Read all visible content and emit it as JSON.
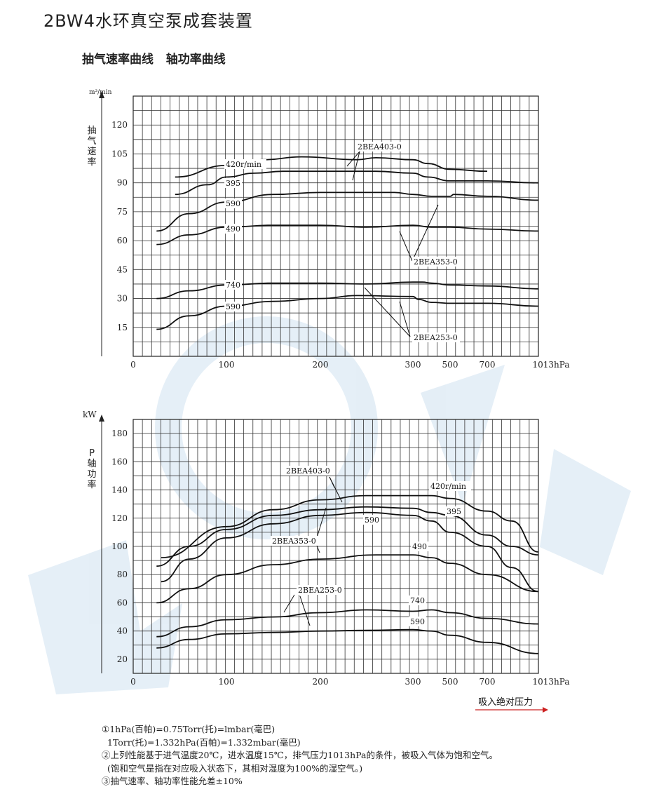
{
  "page": {
    "title": "2BW4水环真空泵成套装置",
    "subtitle": "抽气速率曲线   轴功率曲线",
    "footer_axis_label": "吸入绝对压力",
    "notes": [
      "①1hPa(百帕)=0.75Torr(托)=lmbar(毫巴)",
      "  1Torr(托)=1.332hPa(百帕)=1.332mbar(毫巴)",
      "②上列性能基于进气温度20℃，进水温度15℃，排气压力1013hPa的条件，被吸入气体为饱和空气。",
      "  (饱和空气是指在对应吸入状态下，其相对湿度为100%的湿空气。)",
      "③抽气速率、轴功率性能允差±10%"
    ]
  },
  "chart_data": [
    {
      "type": "line",
      "title": "抽气速率曲线",
      "ylabel": "抽气速率",
      "yunit": "m³/min",
      "ylim": [
        0,
        135
      ],
      "yticks": [
        15,
        30,
        45,
        60,
        75,
        90,
        105,
        120
      ],
      "xticks": [
        {
          "label": "0",
          "value": 0
        },
        {
          "label": "100",
          "value": 100
        },
        {
          "label": "200",
          "value": 200
        },
        {
          "label": "300",
          "value": 300
        },
        {
          "label": "500",
          "value": 500
        },
        {
          "label": "700",
          "value": 700
        },
        {
          "label": "1013hPa",
          "value": 1013
        }
      ],
      "grid": true,
      "series": [
        {
          "name": "420r/min",
          "x": [
            45,
            100,
            140,
            180,
            240,
            260,
            300,
            380,
            500,
            700
          ],
          "values": [
            93,
            99,
            102,
            103.5,
            102,
            103,
            102,
            100,
            97,
            96
          ]
        },
        {
          "name": "395",
          "x": [
            45,
            80,
            100,
            130,
            160,
            200,
            260,
            300,
            380,
            500,
            700,
            1013
          ],
          "values": [
            84,
            89,
            93,
            95,
            96,
            96,
            96,
            95,
            93,
            91,
            91,
            90
          ]
        },
        {
          "name": "590",
          "x": [
            25,
            60,
            100,
            150,
            200,
            280,
            300,
            400,
            500,
            520,
            700,
            1013
          ],
          "values": [
            65,
            74,
            80,
            84,
            85,
            85,
            84,
            83,
            83,
            84,
            83,
            81
          ]
        },
        {
          "name": "490",
          "x": [
            25,
            60,
            100,
            150,
            200,
            250,
            300,
            400,
            500,
            700,
            1013
          ],
          "values": [
            58,
            63,
            67,
            68,
            68,
            67,
            68,
            67,
            67,
            66,
            65
          ]
        },
        {
          "name": "740",
          "x": [
            25,
            60,
            100,
            150,
            200,
            250,
            300,
            350,
            400,
            500,
            700,
            1013
          ],
          "values": [
            30,
            34,
            37,
            38,
            38,
            37.5,
            38.5,
            38.5,
            38,
            37,
            36.5,
            35
          ]
        },
        {
          "name": "590",
          "x": [
            25,
            60,
            100,
            150,
            200,
            240,
            300,
            330,
            400,
            500,
            700,
            1013
          ],
          "values": [
            14,
            21,
            26,
            28.5,
            30,
            31.5,
            31,
            29.5,
            28,
            27.5,
            27.5,
            26
          ]
        }
      ],
      "annotations": [
        "2BEA403-0",
        "2BEA353-0",
        "2BEA253-0"
      ]
    },
    {
      "type": "line",
      "title": "轴功率曲线",
      "ylabel": "P 轴功率",
      "yunit": "kW",
      "ylim": [
        10,
        190
      ],
      "yticks": [
        20,
        40,
        60,
        80,
        100,
        120,
        140,
        160,
        180
      ],
      "xticks": [
        {
          "label": "0",
          "value": 0
        },
        {
          "label": "100",
          "value": 100
        },
        {
          "label": "200",
          "value": 200
        },
        {
          "label": "300",
          "value": 300
        },
        {
          "label": "500",
          "value": 500
        },
        {
          "label": "700",
          "value": 700
        },
        {
          "label": "1013hPa",
          "value": 1013
        }
      ],
      "grid": true,
      "series": [
        {
          "name": "420r/min",
          "x": [
            30,
            100,
            150,
            200,
            250,
            300,
            400,
            500,
            700,
            850,
            1013
          ],
          "values": [
            92,
            114,
            126,
            133,
            136,
            136,
            136,
            134,
            125,
            118,
            96
          ]
        },
        {
          "name": "395",
          "x": [
            25,
            60,
            100,
            150,
            200,
            250,
            300,
            400,
            500,
            700,
            850,
            1013
          ],
          "values": [
            86,
            100,
            112,
            122,
            126,
            128,
            127,
            124,
            122,
            108,
            100,
            94
          ]
        },
        {
          "name": "590",
          "x": [
            30,
            60,
            100,
            150,
            200,
            250,
            300,
            400,
            500,
            700,
            850,
            1013
          ],
          "values": [
            75,
            91,
            106,
            116,
            122,
            124,
            122,
            118,
            110,
            100,
            85,
            68
          ]
        },
        {
          "name": "490",
          "x": [
            25,
            60,
            100,
            150,
            200,
            260,
            300,
            400,
            500,
            700,
            1013
          ],
          "values": [
            60,
            70,
            80,
            87,
            91,
            94,
            94,
            92,
            88,
            80,
            68
          ]
        },
        {
          "name": "740",
          "x": [
            25,
            60,
            100,
            150,
            200,
            250,
            300,
            400,
            500,
            700,
            1013
          ],
          "values": [
            36,
            43,
            48,
            50,
            53,
            55,
            54,
            55,
            53,
            49,
            45
          ]
        },
        {
          "name": "590",
          "x": [
            25,
            60,
            100,
            150,
            200,
            250,
            300,
            400,
            500,
            700,
            1013
          ],
          "values": [
            28,
            34,
            38,
            39,
            40,
            40.5,
            41,
            40,
            37,
            32,
            24
          ]
        }
      ],
      "annotations": [
        "2BEA403-0",
        "2BEA353-0",
        "2BEA253-0"
      ]
    }
  ]
}
